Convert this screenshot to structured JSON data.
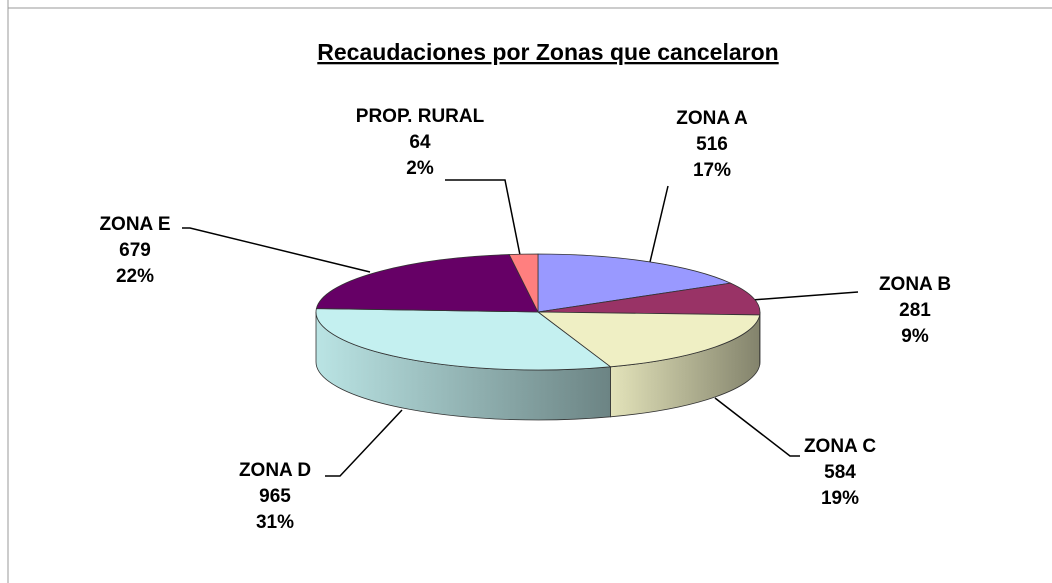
{
  "chart_data": {
    "type": "pie",
    "title": "Recaudaciones por Zonas que cancelaron",
    "categories": [
      "ZONA A",
      "ZONA B",
      "ZONA C",
      "ZONA D",
      "ZONA E",
      "PROP. RURAL"
    ],
    "values": [
      516,
      281,
      584,
      965,
      679,
      64
    ],
    "percent_labels": [
      "17%",
      "9%",
      "19%",
      "31%",
      "22%",
      "2%"
    ],
    "colors": [
      "#9999ff",
      "#993366",
      "#efefc4",
      "#c4f0f0",
      "#660066",
      "#ff7f7f"
    ]
  }
}
